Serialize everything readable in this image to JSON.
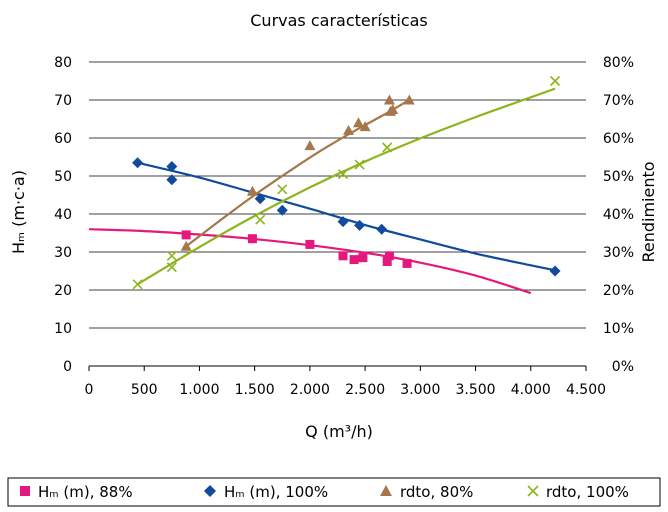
{
  "chart_data": {
    "type": "scatter",
    "title": "Curvas características",
    "xlabel": "Q (m³/h)",
    "ylabel": "Hₘ (m·c·a)",
    "y2label": "Rendimiento",
    "xlim": [
      0,
      4500
    ],
    "ylim": [
      0,
      80
    ],
    "y2lim": [
      0,
      80
    ],
    "x_ticks": [
      0,
      500,
      1000,
      1500,
      2000,
      2500,
      3000,
      3500,
      4000,
      4500
    ],
    "x_tick_labels": [
      "0",
      "500",
      "1.000",
      "1.500",
      "2.000",
      "2.500",
      "3.000",
      "3.500",
      "4.000",
      "4.500"
    ],
    "y_ticks": [
      0,
      10,
      20,
      30,
      40,
      50,
      60,
      70,
      80
    ],
    "y_tick_labels": [
      "0",
      "10",
      "20",
      "30",
      "40",
      "50",
      "60",
      "70",
      "80"
    ],
    "y2_tick_labels": [
      "0%",
      "10%",
      "20%",
      "30%",
      "40%",
      "50%",
      "60%",
      "70%",
      "80%"
    ],
    "grid": "horizontal",
    "legend_position": "bottom",
    "series": [
      {
        "name": "Hₘ (m), 88%",
        "axis": "left",
        "marker": "square",
        "color": "#e5197d",
        "points": [
          [
            880,
            34.5
          ],
          [
            1480,
            33.5
          ],
          [
            2000,
            32
          ],
          [
            2300,
            29
          ],
          [
            2400,
            28
          ],
          [
            2480,
            28.5
          ],
          [
            2700,
            27.5
          ],
          [
            2720,
            29
          ],
          [
            2880,
            27
          ]
        ],
        "trend": [
          [
            0,
            36
          ],
          [
            500,
            35.5
          ],
          [
            1000,
            34.6
          ],
          [
            1500,
            33.4
          ],
          [
            2000,
            31.8
          ],
          [
            2500,
            29.8
          ],
          [
            3000,
            27.2
          ],
          [
            3500,
            23.8
          ],
          [
            4000,
            19.2
          ]
        ]
      },
      {
        "name": "Hₘ (m), 100%",
        "axis": "left",
        "marker": "diamond",
        "color": "#114b9c",
        "points": [
          [
            440,
            53.5
          ],
          [
            750,
            52.5
          ],
          [
            750,
            49
          ],
          [
            1550,
            44
          ],
          [
            1750,
            41
          ],
          [
            2300,
            38
          ],
          [
            2450,
            37
          ],
          [
            2650,
            36
          ],
          [
            4220,
            25
          ]
        ],
        "trend": [
          [
            440,
            53.5
          ],
          [
            1000,
            49.6
          ],
          [
            1500,
            45.5
          ],
          [
            2000,
            41.4
          ],
          [
            2500,
            37.1
          ],
          [
            3000,
            33.3
          ],
          [
            3500,
            29.6
          ],
          [
            4000,
            26.5
          ],
          [
            4220,
            25.2
          ]
        ]
      },
      {
        "name": "rdto, 80%",
        "axis": "right",
        "marker": "triangle",
        "color": "#a5774b",
        "points": [
          [
            880,
            31.5
          ],
          [
            1480,
            46
          ],
          [
            2000,
            58
          ],
          [
            2350,
            62
          ],
          [
            2440,
            64
          ],
          [
            2500,
            63
          ],
          [
            2720,
            70
          ],
          [
            2730,
            67
          ],
          [
            2750,
            67.5
          ],
          [
            2900,
            70
          ]
        ],
        "trend": [
          [
            880,
            31.5
          ],
          [
            1200,
            38.6
          ],
          [
            1500,
            45
          ],
          [
            1800,
            51
          ],
          [
            2100,
            56.7
          ],
          [
            2400,
            61.8
          ],
          [
            2700,
            66.6
          ],
          [
            2900,
            70
          ]
        ]
      },
      {
        "name": "rdto, 100%",
        "axis": "right",
        "marker": "x",
        "color": "#8cb51e",
        "points": [
          [
            440,
            21.5
          ],
          [
            750,
            29
          ],
          [
            750,
            26
          ],
          [
            1550,
            38.5
          ],
          [
            1750,
            46.5
          ],
          [
            2300,
            50.5
          ],
          [
            2450,
            53
          ],
          [
            2700,
            57.5
          ],
          [
            4220,
            75
          ]
        ],
        "trend": [
          [
            440,
            21.5
          ],
          [
            1000,
            31.3
          ],
          [
            1500,
            39.5
          ],
          [
            2000,
            47
          ],
          [
            2500,
            53.8
          ],
          [
            3000,
            59.9
          ],
          [
            3500,
            65.5
          ],
          [
            4000,
            70.7
          ],
          [
            4220,
            73
          ]
        ]
      }
    ]
  },
  "legend": {
    "items": [
      {
        "label": "Hₘ (m), 88%"
      },
      {
        "label": "Hₘ (m), 100%"
      },
      {
        "label": "rdto, 80%"
      },
      {
        "label": "rdto, 100%"
      }
    ]
  }
}
